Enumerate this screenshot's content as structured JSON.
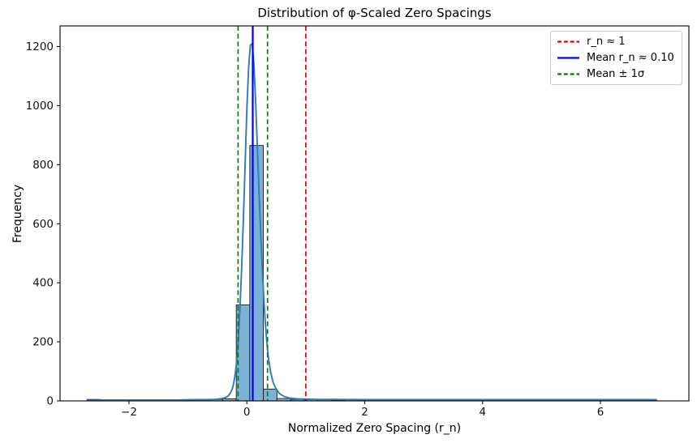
{
  "figure": {
    "title": "Distribution of φ-Scaled Zero Spacings",
    "xlabel": "Normalized Zero Spacing (r_n)",
    "ylabel": "Frequency"
  },
  "chart_data": {
    "type": "bar",
    "subtype": "histogram-with-kde",
    "title": "Distribution of φ-Scaled Zero Spacings",
    "xlabel": "Normalized Zero Spacing (r_n)",
    "ylabel": "Frequency",
    "xlim": [
      -3.17,
      7.5
    ],
    "ylim": [
      0,
      1270
    ],
    "grid": false,
    "xtick_values": [
      -2,
      0,
      2,
      4,
      6
    ],
    "xtick_labels": [
      "−2",
      "0",
      "2",
      "4",
      "6"
    ],
    "ytick_values": [
      0,
      200,
      400,
      600,
      800,
      1000,
      1200
    ],
    "ytick_labels": [
      "0",
      "200",
      "400",
      "600",
      "800",
      "1000",
      "1200"
    ],
    "histogram": {
      "bin_start": -2.71,
      "bin_width": 0.23,
      "counts": [
        5,
        4,
        3,
        4,
        3,
        4,
        4,
        3,
        4,
        5,
        7,
        325,
        865,
        40,
        8,
        5,
        4,
        4,
        3,
        4,
        3,
        4,
        4,
        3,
        4,
        3,
        4,
        4,
        3,
        4,
        3,
        4,
        4,
        3,
        4,
        3,
        4,
        4,
        3,
        4,
        4,
        5
      ],
      "fill": "#7db0d5",
      "edge": "#1a1a1a"
    },
    "kde": {
      "color": "#2d7cb8",
      "points": [
        [
          -2.71,
          2
        ],
        [
          -2.4,
          3
        ],
        [
          -2.0,
          3
        ],
        [
          -1.6,
          3
        ],
        [
          -1.2,
          3
        ],
        [
          -0.9,
          4
        ],
        [
          -0.7,
          4
        ],
        [
          -0.55,
          5
        ],
        [
          -0.45,
          7
        ],
        [
          -0.38,
          10
        ],
        [
          -0.32,
          16
        ],
        [
          -0.28,
          26
        ],
        [
          -0.24,
          45
        ],
        [
          -0.21,
          75
        ],
        [
          -0.18,
          120
        ],
        [
          -0.15,
          195
        ],
        [
          -0.12,
          300
        ],
        [
          -0.09,
          440
        ],
        [
          -0.06,
          610
        ],
        [
          -0.03,
          800
        ],
        [
          0.0,
          985
        ],
        [
          0.03,
          1130
        ],
        [
          0.06,
          1205
        ],
        [
          0.09,
          1210
        ],
        [
          0.12,
          1140
        ],
        [
          0.15,
          1010
        ],
        [
          0.18,
          850
        ],
        [
          0.21,
          690
        ],
        [
          0.24,
          540
        ],
        [
          0.27,
          410
        ],
        [
          0.3,
          305
        ],
        [
          0.33,
          220
        ],
        [
          0.36,
          155
        ],
        [
          0.4,
          100
        ],
        [
          0.45,
          60
        ],
        [
          0.5,
          38
        ],
        [
          0.56,
          24
        ],
        [
          0.63,
          15
        ],
        [
          0.72,
          10
        ],
        [
          0.85,
          7
        ],
        [
          1.0,
          6
        ],
        [
          1.2,
          5
        ],
        [
          1.5,
          5
        ],
        [
          2.0,
          4
        ],
        [
          2.5,
          4
        ],
        [
          3.2,
          4
        ],
        [
          4.0,
          4
        ],
        [
          5.0,
          4
        ],
        [
          6.0,
          4
        ],
        [
          6.7,
          4
        ],
        [
          6.95,
          3
        ]
      ]
    },
    "vlines": [
      {
        "name": "reference-rn-1",
        "x": 1.0,
        "color": "#e60000",
        "style": "dashed",
        "width": 1.7
      },
      {
        "name": "mean",
        "x": 0.1,
        "color": "#0000ee",
        "style": "solid",
        "width": 2.2
      },
      {
        "name": "mean-minus-1sigma",
        "x": -0.15,
        "color": "#008000",
        "style": "dashed",
        "width": 1.7
      },
      {
        "name": "mean-plus-1sigma",
        "x": 0.35,
        "color": "#008000",
        "style": "dashed",
        "width": 1.7
      }
    ],
    "stats": {
      "mean_r_n": 0.1,
      "sigma": 0.25,
      "reference_r_n": 1
    },
    "legend": {
      "position": "upper right",
      "items": [
        {
          "label": "r_n ≈ 1",
          "color": "#e60000",
          "style": "dashed"
        },
        {
          "label": "Mean r_n ≈ 0.10",
          "color": "#0000ee",
          "style": "solid"
        },
        {
          "label": "Mean ± 1σ",
          "color": "#008000",
          "style": "dashed"
        }
      ]
    }
  }
}
